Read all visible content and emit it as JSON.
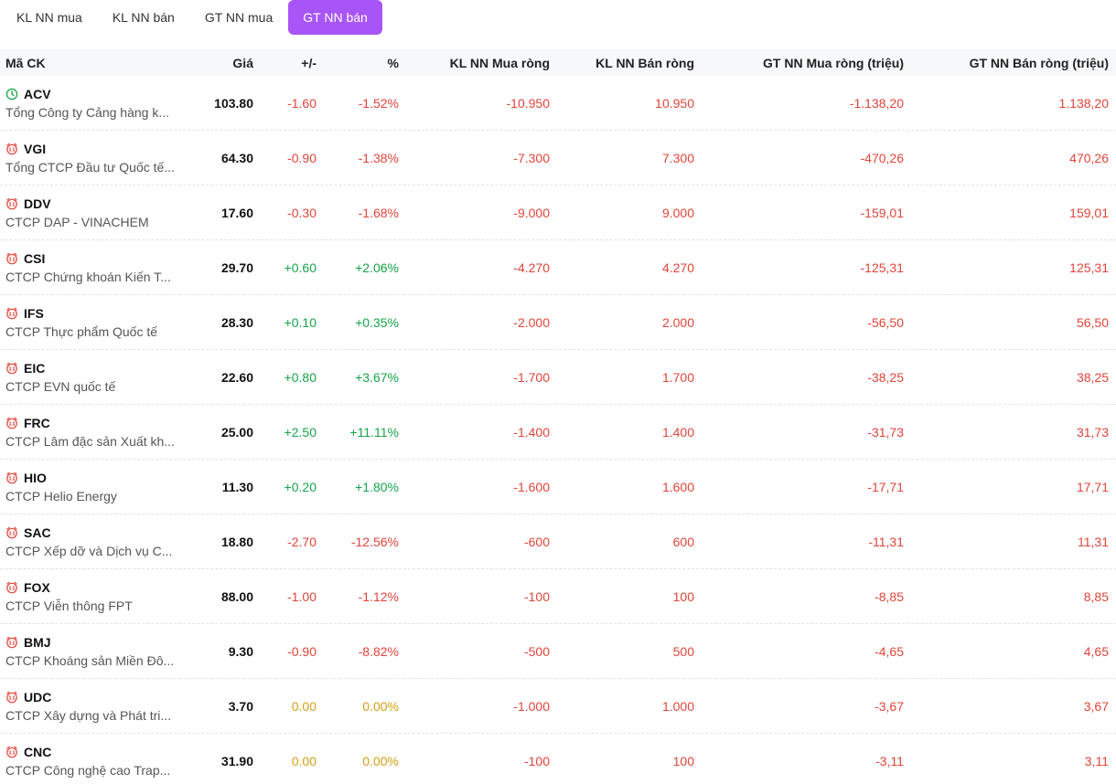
{
  "tabs": [
    {
      "label": "KL NN mua",
      "active": false
    },
    {
      "label": "KL NN bán",
      "active": false
    },
    {
      "label": "GT NN mua",
      "active": false
    },
    {
      "label": "GT NN bán",
      "active": true
    }
  ],
  "accent_color": "#a855f7",
  "colors": {
    "down": "#e0453a",
    "up": "#16a34a",
    "flat": "#d4a017"
  },
  "table": {
    "headers": {
      "code": "Mã CK",
      "price": "Giá",
      "change": "+/-",
      "pct": "%",
      "kl_buy": "KL NN Mua ròng",
      "kl_sell": "KL NN Bán ròng",
      "gt_buy": "GT NN Mua ròng (triệu)",
      "gt_sell": "GT NN Bán ròng (triệu)"
    },
    "rows": [
      {
        "code": "ACV",
        "icon": "clock-icon",
        "name": "Tổng Công ty Cảng hàng k...",
        "price": "103.80",
        "change": "-1.60",
        "pct": "-1.52%",
        "trend": "down",
        "kl_buy": "-10.950",
        "kl_sell": "10.950",
        "gt_buy": "-1.138,20",
        "gt_sell": "1.138,20"
      },
      {
        "code": "VGI",
        "icon": "alarm-icon",
        "name": "Tổng CTCP Đầu tư Quốc tế...",
        "price": "64.30",
        "change": "-0.90",
        "pct": "-1.38%",
        "trend": "down",
        "kl_buy": "-7.300",
        "kl_sell": "7.300",
        "gt_buy": "-470,26",
        "gt_sell": "470,26"
      },
      {
        "code": "DDV",
        "icon": "alarm-icon",
        "name": "CTCP DAP - VINACHEM",
        "price": "17.60",
        "change": "-0.30",
        "pct": "-1.68%",
        "trend": "down",
        "kl_buy": "-9.000",
        "kl_sell": "9.000",
        "gt_buy": "-159,01",
        "gt_sell": "159,01"
      },
      {
        "code": "CSI",
        "icon": "alarm-icon",
        "name": "CTCP Chứng khoán Kiến T...",
        "price": "29.70",
        "change": "+0.60",
        "pct": "+2.06%",
        "trend": "up",
        "kl_buy": "-4.270",
        "kl_sell": "4.270",
        "gt_buy": "-125,31",
        "gt_sell": "125,31"
      },
      {
        "code": "IFS",
        "icon": "alarm-icon",
        "name": "CTCP Thực phẩm Quốc tế",
        "price": "28.30",
        "change": "+0.10",
        "pct": "+0.35%",
        "trend": "up",
        "kl_buy": "-2.000",
        "kl_sell": "2.000",
        "gt_buy": "-56,50",
        "gt_sell": "56,50"
      },
      {
        "code": "EIC",
        "icon": "alarm-icon",
        "name": "CTCP EVN quốc tế",
        "price": "22.60",
        "change": "+0.80",
        "pct": "+3.67%",
        "trend": "up",
        "kl_buy": "-1.700",
        "kl_sell": "1.700",
        "gt_buy": "-38,25",
        "gt_sell": "38,25"
      },
      {
        "code": "FRC",
        "icon": "alarm-icon",
        "name": "CTCP Lâm đặc sản Xuất kh...",
        "price": "25.00",
        "change": "+2.50",
        "pct": "+11.11%",
        "trend": "up",
        "kl_buy": "-1.400",
        "kl_sell": "1.400",
        "gt_buy": "-31,73",
        "gt_sell": "31,73"
      },
      {
        "code": "HIO",
        "icon": "alarm-icon",
        "name": "CTCP Helio Energy",
        "price": "11.30",
        "change": "+0.20",
        "pct": "+1.80%",
        "trend": "up",
        "kl_buy": "-1.600",
        "kl_sell": "1.600",
        "gt_buy": "-17,71",
        "gt_sell": "17,71"
      },
      {
        "code": "SAC",
        "icon": "alarm-icon",
        "name": "CTCP Xếp dỡ và Dịch vụ C...",
        "price": "18.80",
        "change": "-2.70",
        "pct": "-12.56%",
        "trend": "down",
        "kl_buy": "-600",
        "kl_sell": "600",
        "gt_buy": "-11,31",
        "gt_sell": "11,31"
      },
      {
        "code": "FOX",
        "icon": "alarm-icon",
        "name": "CTCP Viễn thông FPT",
        "price": "88.00",
        "change": "-1.00",
        "pct": "-1.12%",
        "trend": "down",
        "kl_buy": "-100",
        "kl_sell": "100",
        "gt_buy": "-8,85",
        "gt_sell": "8,85"
      },
      {
        "code": "BMJ",
        "icon": "alarm-icon",
        "name": "CTCP Khoáng sản Miền Đô...",
        "price": "9.30",
        "change": "-0.90",
        "pct": "-8.82%",
        "trend": "down",
        "kl_buy": "-500",
        "kl_sell": "500",
        "gt_buy": "-4,65",
        "gt_sell": "4,65"
      },
      {
        "code": "UDC",
        "icon": "alarm-icon",
        "name": "CTCP Xây dựng và Phát tri...",
        "price": "3.70",
        "change": "0.00",
        "pct": "0.00%",
        "trend": "flat",
        "kl_buy": "-1.000",
        "kl_sell": "1.000",
        "gt_buy": "-3,67",
        "gt_sell": "3,67"
      },
      {
        "code": "CNC",
        "icon": "alarm-icon",
        "name": "CTCP Công nghệ cao Trap...",
        "price": "31.90",
        "change": "0.00",
        "pct": "0.00%",
        "trend": "flat",
        "kl_buy": "-100",
        "kl_sell": "100",
        "gt_buy": "-3,11",
        "gt_sell": "3,11"
      }
    ]
  }
}
